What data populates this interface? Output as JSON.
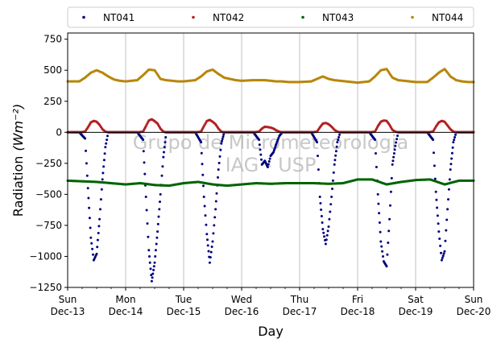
{
  "chart_data": {
    "type": "scatter",
    "title": "",
    "xlabel": "Day",
    "ylabel": "Radiation",
    "ylabel_unit": "(Wm⁻²)",
    "ylim": [
      -1250,
      800
    ],
    "yticks": [
      -1250,
      -1000,
      -750,
      -500,
      -250,
      0,
      250,
      500,
      750
    ],
    "xlim": [
      0,
      7
    ],
    "xticks": [
      {
        "day": "Sun",
        "date": "Dec-13"
      },
      {
        "day": "Mon",
        "date": "Dec-14"
      },
      {
        "day": "Tue",
        "date": "Dec-15"
      },
      {
        "day": "Wed",
        "date": "Dec-16"
      },
      {
        "day": "Thu",
        "date": "Dec-17"
      },
      {
        "day": "Fri",
        "date": "Dec-18"
      },
      {
        "day": "Sat",
        "date": "Dec-19"
      },
      {
        "day": "Sun",
        "date": "Dec-20"
      }
    ],
    "grid": "vertical",
    "legend_position": "top",
    "watermark": [
      "Grupo de Micrometeorologia",
      "IAG - USP"
    ],
    "series": [
      {
        "name": "NT041",
        "color": "#00007f",
        "x": [
          0.0,
          0.1,
          0.2,
          0.3,
          0.35,
          0.4,
          0.45,
          0.5,
          0.55,
          0.6,
          0.65,
          0.7,
          0.8,
          0.9,
          1.0,
          1.1,
          1.2,
          1.3,
          1.35,
          1.4,
          1.45,
          1.5,
          1.55,
          1.6,
          1.65,
          1.7,
          1.8,
          1.9,
          2.0,
          2.1,
          2.2,
          2.3,
          2.35,
          2.4,
          2.45,
          2.5,
          2.55,
          2.6,
          2.65,
          2.7,
          2.8,
          2.9,
          3.0,
          3.1,
          3.2,
          3.3,
          3.35,
          3.4,
          3.45,
          3.5,
          3.55,
          3.6,
          3.65,
          3.7,
          3.8,
          3.9,
          4.0,
          4.1,
          4.2,
          4.3,
          4.35,
          4.4,
          4.45,
          4.5,
          4.55,
          4.6,
          4.65,
          4.7,
          4.8,
          4.9,
          5.0,
          5.1,
          5.2,
          5.3,
          5.35,
          5.4,
          5.45,
          5.5,
          5.55,
          5.6,
          5.65,
          5.7,
          5.8,
          5.9,
          6.0,
          6.1,
          6.2,
          6.3,
          6.35,
          6.4,
          6.45,
          6.5,
          6.55,
          6.6,
          6.65,
          6.7,
          6.8,
          6.9,
          7.0
        ],
        "y": [
          0,
          0,
          0,
          -50,
          -450,
          -850,
          -1030,
          -980,
          -700,
          -380,
          -120,
          0,
          0,
          0,
          0,
          0,
          0,
          -60,
          -520,
          -950,
          -1200,
          -1050,
          -800,
          -500,
          -200,
          0,
          0,
          0,
          0,
          0,
          0,
          -80,
          -520,
          -820,
          -1050,
          -880,
          -620,
          -300,
          -90,
          0,
          0,
          0,
          0,
          0,
          0,
          -60,
          -260,
          -230,
          -280,
          -190,
          -160,
          -90,
          -30,
          0,
          0,
          0,
          0,
          0,
          0,
          -80,
          -520,
          -780,
          -900,
          -760,
          -520,
          -260,
          -80,
          0,
          0,
          0,
          0,
          0,
          0,
          -60,
          -500,
          -880,
          -1040,
          -1080,
          -700,
          -260,
          -110,
          0,
          0,
          0,
          0,
          0,
          0,
          -60,
          -480,
          -800,
          -1030,
          -960,
          -620,
          -300,
          -80,
          0,
          0,
          0,
          0
        ]
      },
      {
        "name": "NT042",
        "color": "#b22222",
        "x": [
          0.0,
          0.1,
          0.2,
          0.3,
          0.35,
          0.4,
          0.45,
          0.5,
          0.55,
          0.6,
          0.65,
          0.7,
          0.8,
          0.9,
          1.0,
          1.1,
          1.2,
          1.3,
          1.35,
          1.4,
          1.45,
          1.5,
          1.55,
          1.6,
          1.65,
          1.7,
          1.8,
          1.9,
          2.0,
          2.1,
          2.2,
          2.3,
          2.35,
          2.4,
          2.45,
          2.5,
          2.55,
          2.6,
          2.65,
          2.7,
          2.8,
          2.9,
          3.0,
          3.1,
          3.2,
          3.3,
          3.35,
          3.4,
          3.45,
          3.5,
          3.55,
          3.6,
          3.65,
          3.7,
          3.8,
          3.9,
          4.0,
          4.1,
          4.2,
          4.3,
          4.35,
          4.4,
          4.45,
          4.5,
          4.55,
          4.6,
          4.65,
          4.7,
          4.8,
          4.9,
          5.0,
          5.1,
          5.2,
          5.3,
          5.35,
          5.4,
          5.45,
          5.5,
          5.55,
          5.6,
          5.65,
          5.7,
          5.8,
          5.9,
          6.0,
          6.1,
          6.2,
          6.3,
          6.35,
          6.4,
          6.45,
          6.5,
          6.55,
          6.6,
          6.65,
          6.7,
          6.8,
          6.9,
          7.0
        ],
        "y": [
          0,
          0,
          0,
          5,
          40,
          80,
          92,
          85,
          60,
          25,
          5,
          0,
          0,
          0,
          0,
          0,
          0,
          5,
          50,
          95,
          105,
          90,
          70,
          30,
          5,
          0,
          0,
          0,
          0,
          0,
          0,
          5,
          50,
          90,
          100,
          85,
          65,
          30,
          5,
          0,
          0,
          0,
          0,
          0,
          0,
          5,
          30,
          45,
          42,
          38,
          30,
          15,
          5,
          0,
          0,
          0,
          0,
          0,
          0,
          5,
          40,
          70,
          75,
          65,
          45,
          20,
          5,
          0,
          0,
          0,
          0,
          0,
          0,
          5,
          50,
          85,
          95,
          92,
          60,
          20,
          5,
          0,
          0,
          0,
          0,
          0,
          0,
          5,
          45,
          80,
          92,
          85,
          55,
          25,
          5,
          0,
          0,
          0,
          0
        ]
      },
      {
        "name": "NT043",
        "color": "#006400",
        "x": [
          0.0,
          0.25,
          0.5,
          0.75,
          1.0,
          1.25,
          1.5,
          1.75,
          2.0,
          2.25,
          2.5,
          2.75,
          3.0,
          3.25,
          3.5,
          3.75,
          4.0,
          4.25,
          4.5,
          4.75,
          5.0,
          5.25,
          5.5,
          5.75,
          6.0,
          6.25,
          6.5,
          6.75,
          7.0
        ],
        "y": [
          -390,
          -395,
          -400,
          -410,
          -420,
          -410,
          -425,
          -430,
          -410,
          -400,
          -420,
          -430,
          -420,
          -410,
          -415,
          -410,
          -410,
          -410,
          -415,
          -410,
          -380,
          -380,
          -420,
          -400,
          -385,
          -380,
          -420,
          -390,
          -390
        ]
      },
      {
        "name": "NT044",
        "color": "#b8860b",
        "x": [
          0.0,
          0.2,
          0.3,
          0.4,
          0.5,
          0.6,
          0.7,
          0.8,
          0.9,
          1.0,
          1.2,
          1.3,
          1.4,
          1.5,
          1.6,
          1.7,
          1.8,
          1.9,
          2.0,
          2.2,
          2.3,
          2.4,
          2.5,
          2.6,
          2.7,
          2.8,
          2.9,
          3.0,
          3.2,
          3.3,
          3.4,
          3.5,
          3.6,
          3.7,
          3.8,
          3.9,
          4.0,
          4.2,
          4.3,
          4.4,
          4.5,
          4.6,
          4.7,
          4.8,
          4.9,
          5.0,
          5.2,
          5.3,
          5.4,
          5.5,
          5.6,
          5.7,
          5.8,
          5.9,
          6.0,
          6.2,
          6.3,
          6.4,
          6.5,
          6.6,
          6.7,
          6.8,
          6.9,
          7.0
        ],
        "y": [
          410,
          410,
          440,
          480,
          500,
          480,
          450,
          425,
          415,
          410,
          420,
          460,
          505,
          500,
          430,
          420,
          415,
          410,
          410,
          420,
          450,
          490,
          505,
          470,
          440,
          430,
          420,
          415,
          420,
          420,
          420,
          415,
          410,
          410,
          405,
          405,
          405,
          410,
          430,
          450,
          430,
          420,
          415,
          410,
          405,
          400,
          410,
          450,
          500,
          510,
          440,
          420,
          415,
          410,
          405,
          405,
          440,
          480,
          510,
          450,
          420,
          410,
          405,
          405
        ]
      }
    ]
  }
}
